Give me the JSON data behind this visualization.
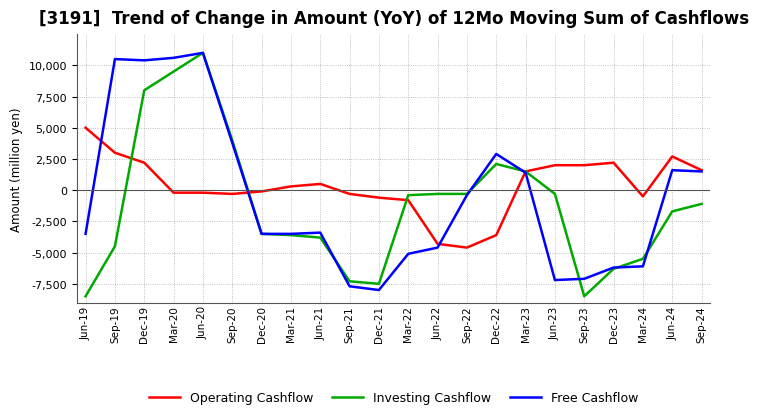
{
  "title": "[3191]  Trend of Change in Amount (YoY) of 12Mo Moving Sum of Cashflows",
  "ylabel": "Amount (million yen)",
  "x_labels": [
    "Jun-19",
    "Sep-19",
    "Dec-19",
    "Mar-20",
    "Jun-20",
    "Sep-20",
    "Dec-20",
    "Mar-21",
    "Jun-21",
    "Sep-21",
    "Dec-21",
    "Mar-22",
    "Jun-22",
    "Sep-22",
    "Dec-22",
    "Mar-23",
    "Jun-23",
    "Sep-23",
    "Dec-23",
    "Mar-24",
    "Jun-24",
    "Sep-24"
  ],
  "operating": [
    5000,
    3000,
    2200,
    -200,
    -200,
    -300,
    -100,
    300,
    500,
    -300,
    -600,
    -800,
    -4300,
    -4600,
    -3600,
    1500,
    2000,
    2000,
    2200,
    -500,
    2700,
    1600
  ],
  "investing": [
    -8500,
    -4500,
    8000,
    9500,
    11000,
    4000,
    -3500,
    -3600,
    -3800,
    -7300,
    -7500,
    -400,
    -300,
    -300,
    2100,
    1500,
    -300,
    -8500,
    -6300,
    -5500,
    -1700,
    -1100
  ],
  "free": [
    -3500,
    10500,
    10400,
    10600,
    11000,
    3800,
    -3500,
    -3500,
    -3400,
    -7700,
    -8000,
    -5100,
    -4600,
    -400,
    2900,
    1400,
    -7200,
    -7100,
    -6200,
    -6100,
    1600,
    1500
  ],
  "operating_color": "#ff0000",
  "investing_color": "#00aa00",
  "free_color": "#0000ff",
  "ylim": [
    -9000,
    12500
  ],
  "yticks": [
    -7500,
    -5000,
    -2500,
    0,
    2500,
    5000,
    7500,
    10000
  ],
  "background_color": "#ffffff",
  "grid_color": "#999999",
  "title_fontsize": 12,
  "legend_labels": [
    "Operating Cashflow",
    "Investing Cashflow",
    "Free Cashflow"
  ]
}
